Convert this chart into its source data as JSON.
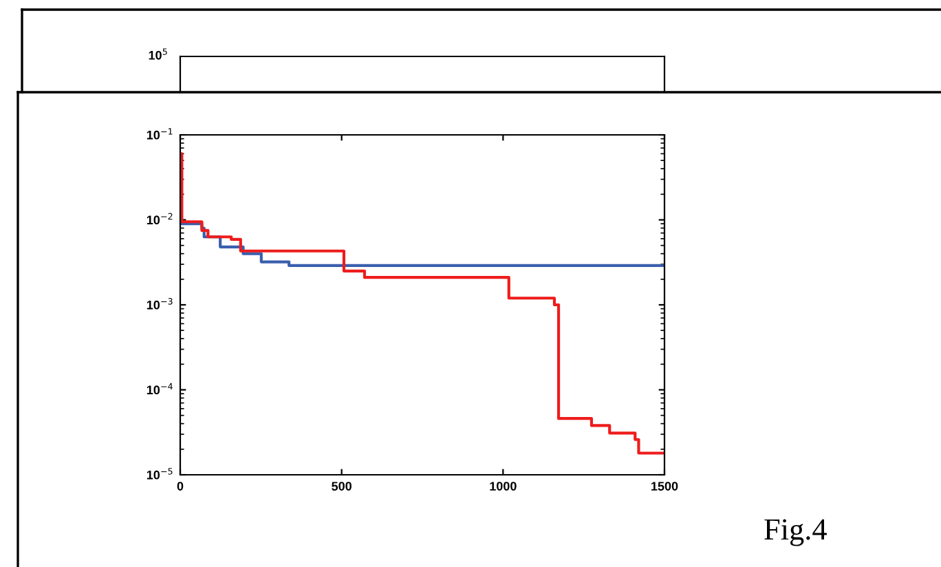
{
  "chart_data": [
    {
      "type": "other",
      "annotations": [
        "10$^{5}$"
      ]
    },
    {
      "type": "step",
      "log": "y",
      "xlim": [
        0,
        1500
      ],
      "xticks": [
        0,
        500,
        1000,
        1500
      ],
      "ylim": [
        1e-05,
        0.1
      ],
      "yticks": [
        {
          "value": 0.1,
          "label": "10$^{−1}$"
        },
        {
          "value": 0.01,
          "label": "10$^{−2}$"
        },
        {
          "value": 0.001,
          "label": "10$^{−3}$"
        },
        {
          "value": 0.0001,
          "label": "10$^{−4}$"
        },
        {
          "value": 1e-05,
          "label": "10$^{−5}$"
        }
      ],
      "grid": false,
      "legend": false,
      "marker": "none",
      "line_style": "solid",
      "annotations": [
        "Fig.4"
      ],
      "series": [
        {
          "color": "#3a5fad",
          "x": [
            0,
            3,
            67,
            74,
            124,
            195,
            251,
            337,
            1500
          ],
          "values": [
            0.05,
            0.009,
            0.008,
            0.0063,
            0.0048,
            0.004,
            0.0032,
            0.0029,
            0.0029
          ]
        },
        {
          "color": "#ee1c1c",
          "x": [
            0,
            5,
            67,
            86,
            158,
            187,
            507,
            571,
            1018,
            1159,
            1172,
            1274,
            1330,
            1409,
            1420,
            1425,
            1500
          ],
          "values": [
            0.06,
            0.0095,
            0.0075,
            0.0063,
            0.0059,
            0.0043,
            0.0025,
            0.0021,
            0.0012,
            0.001,
            4.6e-05,
            3.8e-05,
            3.1e-05,
            2.6e-05,
            1.8e-05,
            1.8e-05,
            1.8e-05
          ]
        }
      ]
    }
  ]
}
